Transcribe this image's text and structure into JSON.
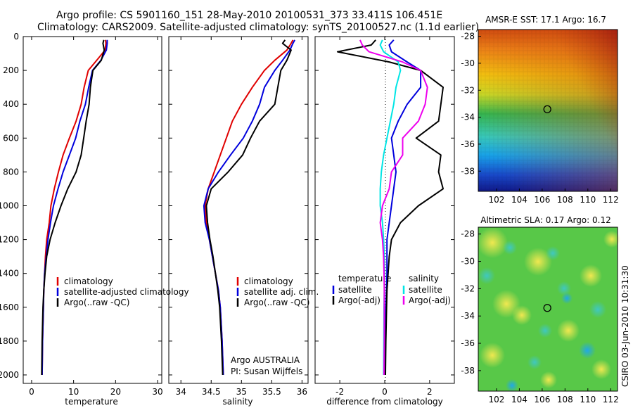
{
  "header": {
    "line1": "Argo profile: CS 5901160_151 28-May-2010 20100531_373 33.411S 106.451E",
    "line2": "Climatology: CARS2009. Satellite-adjusted climatology: synTS_20100527.nc (1.1d earlier)"
  },
  "colors": {
    "climatology": "#e00000",
    "satellite": "#0000dd",
    "argo": "#000000",
    "sat_salinity": "#00e5e5",
    "argo_salinity": "#ee00ee"
  },
  "chart_data": [
    {
      "type": "line",
      "xlabel": "temperature",
      "ylim": [
        2050,
        0
      ],
      "xlim": [
        -2,
        31
      ],
      "x_ticks": [
        0,
        10,
        20,
        30
      ],
      "y_ticks": [
        0,
        200,
        400,
        600,
        800,
        1000,
        1200,
        1400,
        1600,
        1800,
        2000
      ],
      "legend": [
        "climatology",
        "satellite-adjusted climatology",
        "Argo(..raw -QC)"
      ],
      "series": [
        {
          "name": "climatology",
          "color": "#e00000",
          "x": [
            17.6,
            17.7,
            17.5,
            15.5,
            13.5,
            12.5,
            11.8,
            10.6,
            9.0,
            7.5,
            6.4,
            5.4,
            4.6,
            4.2,
            3.6,
            3.3,
            3.1,
            2.9,
            2.8,
            2.6,
            2.5
          ],
          "y": [
            20,
            40,
            80,
            140,
            200,
            300,
            400,
            500,
            600,
            700,
            800,
            900,
            1000,
            1100,
            1200,
            1300,
            1400,
            1500,
            1600,
            1800,
            2000
          ]
        },
        {
          "name": "satellite-adjusted climatology",
          "color": "#0000dd",
          "x": [
            18.0,
            18.0,
            17.8,
            16.5,
            14.5,
            13.6,
            12.8,
            11.5,
            10.5,
            9.0,
            7.5,
            6.3,
            5.2,
            4.5,
            3.9,
            3.5,
            3.1,
            2.9,
            2.8,
            2.6,
            2.5
          ],
          "y": [
            20,
            40,
            80,
            140,
            200,
            300,
            400,
            500,
            600,
            700,
            800,
            900,
            1000,
            1100,
            1200,
            1300,
            1400,
            1500,
            1600,
            1800,
            2000
          ]
        },
        {
          "name": "Argo(..raw -QC)",
          "color": "#000000",
          "x": [
            17.2,
            17.0,
            17.3,
            16.6,
            14.6,
            14.0,
            13.7,
            13.0,
            12.4,
            11.8,
            10.6,
            8.6,
            7.0,
            5.6,
            4.4,
            3.6,
            3.2,
            2.9,
            2.7,
            2.5,
            2.4
          ],
          "y": [
            20,
            40,
            80,
            140,
            200,
            300,
            400,
            500,
            600,
            700,
            800,
            900,
            1000,
            1100,
            1200,
            1300,
            1400,
            1500,
            1600,
            1800,
            2000
          ]
        }
      ]
    },
    {
      "type": "line",
      "xlabel": "salinity",
      "ylim": [
        2050,
        0
      ],
      "xlim": [
        33.8,
        36.1
      ],
      "x_ticks": [
        34,
        34.5,
        35,
        35.5,
        36
      ],
      "legend": [
        "climatology",
        "satellite adj. clim.",
        "Argo(..raw -QC)"
      ],
      "annotations": [
        "Argo AUSTRALIA",
        "PI: Susan Wijffels"
      ],
      "series": [
        {
          "name": "climatology",
          "color": "#e00000",
          "x": [
            35.85,
            35.82,
            35.75,
            35.55,
            35.38,
            35.18,
            35.0,
            34.85,
            34.75,
            34.65,
            34.55,
            34.45,
            34.4,
            34.42,
            34.47,
            34.52,
            34.57,
            34.62,
            34.65,
            34.68,
            34.7
          ],
          "y": [
            20,
            40,
            80,
            140,
            200,
            300,
            400,
            500,
            600,
            700,
            800,
            900,
            1000,
            1100,
            1200,
            1300,
            1400,
            1500,
            1600,
            1800,
            2000
          ]
        },
        {
          "name": "satellite adj. clim.",
          "color": "#0000dd",
          "x": [
            35.88,
            35.85,
            35.8,
            35.68,
            35.55,
            35.38,
            35.3,
            35.18,
            35.03,
            34.82,
            34.62,
            34.45,
            34.38,
            34.4,
            34.47,
            34.52,
            34.57,
            34.62,
            34.65,
            34.68,
            34.7
          ],
          "y": [
            20,
            40,
            80,
            140,
            200,
            300,
            400,
            500,
            600,
            700,
            800,
            900,
            1000,
            1100,
            1200,
            1300,
            1400,
            1500,
            1600,
            1800,
            2000
          ]
        },
        {
          "name": "Argo(..raw -QC)",
          "color": "#000000",
          "x": [
            35.72,
            35.68,
            35.82,
            35.75,
            35.65,
            35.6,
            35.55,
            35.3,
            35.15,
            35.02,
            34.78,
            34.5,
            34.42,
            34.44,
            34.48,
            34.53,
            34.57,
            34.61,
            34.64,
            34.67,
            34.69
          ],
          "y": [
            20,
            40,
            80,
            140,
            200,
            300,
            400,
            500,
            600,
            700,
            800,
            900,
            1000,
            1100,
            1200,
            1300,
            1400,
            1500,
            1600,
            1800,
            2000
          ]
        }
      ]
    },
    {
      "type": "line",
      "xlabel": "difference from climatology",
      "ylim": [
        2050,
        0
      ],
      "xlim": [
        -3.1,
        3.1
      ],
      "x_ticks": [
        -2,
        0,
        2
      ],
      "legend": [
        {
          "heading": "temperature",
          "items": [
            "satellite",
            "Argo(-adj)"
          ]
        },
        {
          "heading": "salinity",
          "items": [
            "satellite",
            "Argo(-adj)"
          ]
        }
      ],
      "series": [
        {
          "name": "temperature satellite",
          "color": "#0000dd",
          "x": [
            0.4,
            0.2,
            0.3,
            1.0,
            1.6,
            1.6,
            1.0,
            0.6,
            0.3,
            0.4,
            0.5,
            0.4,
            0.3,
            0.2,
            0.1,
            0.1,
            0.1,
            0.08,
            0.05,
            0.03,
            0.02
          ],
          "y": [
            20,
            50,
            90,
            150,
            200,
            300,
            400,
            500,
            600,
            700,
            800,
            900,
            1000,
            1100,
            1200,
            1300,
            1400,
            1500,
            1600,
            1800,
            2000
          ]
        },
        {
          "name": "temperature Argo(-adj)",
          "color": "#000000",
          "x": [
            -0.4,
            -0.6,
            -2.1,
            0.2,
            1.6,
            2.6,
            2.5,
            2.4,
            1.4,
            2.5,
            2.4,
            2.6,
            1.5,
            0.7,
            0.3,
            0.2,
            0.15,
            0.1,
            0.08,
            0.05,
            0.03
          ],
          "y": [
            20,
            50,
            90,
            150,
            200,
            300,
            400,
            500,
            600,
            700,
            800,
            900,
            1000,
            1100,
            1200,
            1300,
            1400,
            1500,
            1600,
            1800,
            2000
          ]
        },
        {
          "name": "salinity satellite",
          "color": "#00e5e5",
          "x": [
            -0.1,
            -0.2,
            -0.05,
            0.6,
            0.7,
            0.5,
            0.4,
            0.25,
            0.1,
            -0.05,
            -0.15,
            -0.2,
            -0.2,
            -0.1,
            -0.05,
            -0.02,
            -0.01,
            -0.02,
            -0.03,
            -0.04,
            -0.05
          ],
          "y": [
            20,
            50,
            90,
            150,
            200,
            300,
            400,
            500,
            600,
            700,
            800,
            900,
            1000,
            1100,
            1200,
            1300,
            1400,
            1500,
            1600,
            1800,
            2000
          ]
        },
        {
          "name": "salinity Argo(-adj)",
          "color": "#ee00ee",
          "x": [
            -1.1,
            -1.0,
            -0.7,
            0.8,
            1.6,
            1.9,
            1.8,
            1.5,
            0.8,
            0.8,
            0.3,
            0.2,
            -0.1,
            -0.2,
            -0.1,
            -0.05,
            -0.03,
            -0.02,
            -0.02,
            -0.02,
            -0.03
          ],
          "y": [
            20,
            50,
            90,
            150,
            200,
            300,
            400,
            500,
            600,
            700,
            800,
            900,
            1000,
            1100,
            1200,
            1300,
            1400,
            1500,
            1600,
            1800,
            2000
          ]
        }
      ]
    },
    {
      "type": "heatmap",
      "title": "AMSR-E SST: 17.1 Argo: 16.7",
      "xlim": [
        100.4,
        112.6
      ],
      "ylim": [
        -39.5,
        -27.5
      ],
      "x_ticks": [
        102,
        104,
        106,
        108,
        110,
        112
      ],
      "y_ticks": [
        -28,
        -30,
        -32,
        -34,
        -36,
        -38
      ],
      "marker": {
        "lon": 106.45,
        "lat": -33.41
      }
    },
    {
      "type": "heatmap",
      "title": "Altimetric SLA: 0.17 Argo: 0.12",
      "xlim": [
        100.4,
        112.6
      ],
      "ylim": [
        -39.5,
        -27.5
      ],
      "x_ticks": [
        102,
        104,
        106,
        108,
        110,
        112
      ],
      "y_ticks": [
        -28,
        -30,
        -32,
        -34,
        -36,
        -38
      ],
      "marker": {
        "lon": 106.45,
        "lat": -33.41
      }
    }
  ],
  "side_label": "CSIRO 03-Jun-2010 10:31:30"
}
